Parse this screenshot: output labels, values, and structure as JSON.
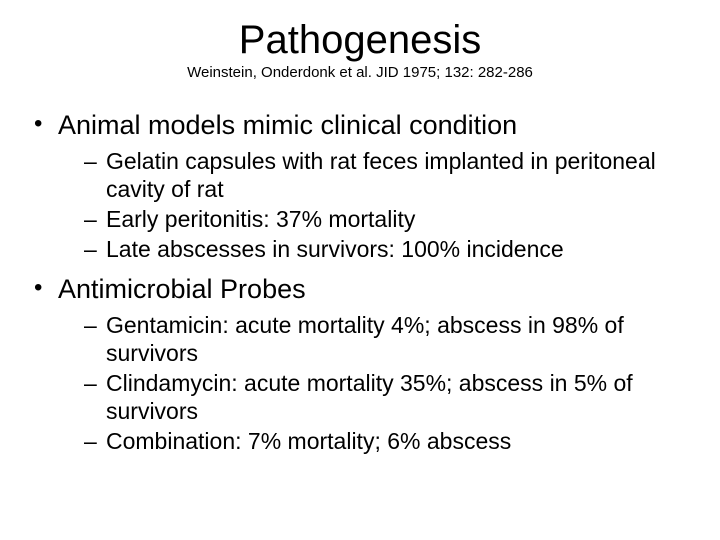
{
  "title": "Pathogenesis",
  "citation": "Weinstein, Onderdonk et al. JID 1975; 132: 282-286",
  "bullets": [
    {
      "text": "Animal models mimic clinical condition",
      "sub": [
        "Gelatin capsules with rat feces implanted in peritoneal cavity of rat",
        "Early peritonitis: 37% mortality",
        "Late abscesses in survivors: 100% incidence"
      ]
    },
    {
      "text": "Antimicrobial Probes",
      "sub": [
        "Gentamicin: acute mortality 4%; abscess in 98% of survivors",
        "Clindamycin: acute mortality 35%; abscess in 5% of survivors",
        "Combination: 7% mortality; 6% abscess"
      ]
    }
  ],
  "colors": {
    "background": "#ffffff",
    "text": "#000000"
  },
  "typography": {
    "title_fontsize": 40,
    "citation_fontsize": 15,
    "level1_fontsize": 27,
    "level2_fontsize": 23,
    "font_family": "Arial"
  }
}
